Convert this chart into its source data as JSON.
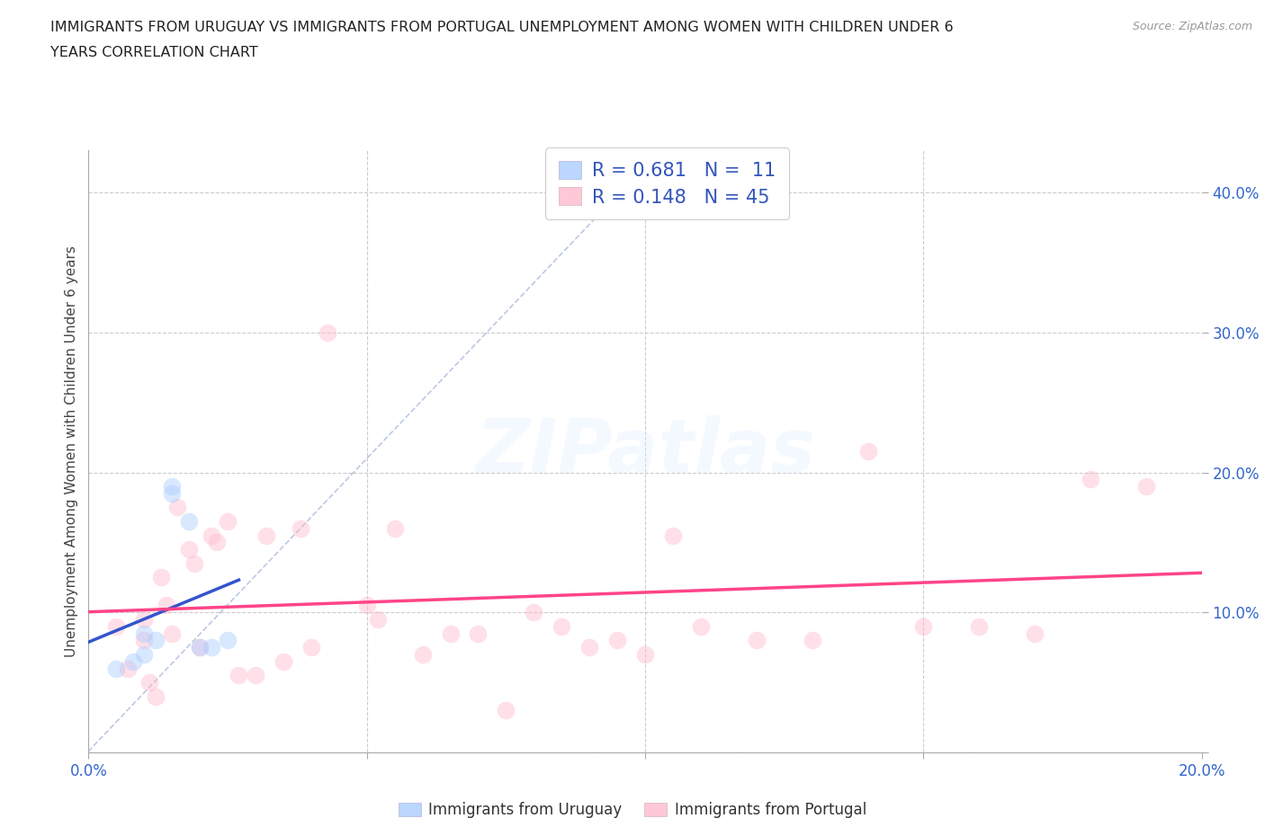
{
  "title_line1": "IMMIGRANTS FROM URUGUAY VS IMMIGRANTS FROM PORTUGAL UNEMPLOYMENT AMONG WOMEN WITH CHILDREN UNDER 6",
  "title_line2": "YEARS CORRELATION CHART",
  "source_text": "Source: ZipAtlas.com",
  "ylabel": "Unemployment Among Women with Children Under 6 years",
  "xlim": [
    0.0,
    0.2
  ],
  "ylim": [
    0.0,
    0.43
  ],
  "xticks": [
    0.0,
    0.05,
    0.1,
    0.15,
    0.2
  ],
  "yticks": [
    0.0,
    0.1,
    0.2,
    0.3,
    0.4
  ],
  "xticklabels": [
    "0.0%",
    "",
    "",
    "",
    "20.0%"
  ],
  "yticklabels": [
    "",
    "10.0%",
    "20.0%",
    "30.0%",
    "40.0%"
  ],
  "uruguay_R": 0.681,
  "uruguay_N": 11,
  "portugal_R": 0.148,
  "portugal_N": 45,
  "uruguay_color": "#aaccff",
  "portugal_color": "#ffbbcc",
  "uruguay_line_color": "#3355cc",
  "portugal_line_color": "#ff4488",
  "diag_line_color": "#aabbdd",
  "uruguay_x": [
    0.005,
    0.008,
    0.01,
    0.01,
    0.012,
    0.015,
    0.015,
    0.018,
    0.02,
    0.022,
    0.025
  ],
  "uruguay_y": [
    0.06,
    0.065,
    0.07,
    0.085,
    0.08,
    0.19,
    0.185,
    0.165,
    0.075,
    0.075,
    0.08
  ],
  "portugal_x": [
    0.005,
    0.007,
    0.01,
    0.01,
    0.011,
    0.012,
    0.013,
    0.014,
    0.015,
    0.016,
    0.018,
    0.019,
    0.02,
    0.022,
    0.023,
    0.025,
    0.027,
    0.03,
    0.032,
    0.035,
    0.038,
    0.04,
    0.043,
    0.05,
    0.052,
    0.055,
    0.06,
    0.065,
    0.07,
    0.075,
    0.08,
    0.085,
    0.09,
    0.095,
    0.1,
    0.105,
    0.11,
    0.12,
    0.13,
    0.14,
    0.15,
    0.16,
    0.17,
    0.18,
    0.19
  ],
  "portugal_y": [
    0.09,
    0.06,
    0.095,
    0.08,
    0.05,
    0.04,
    0.125,
    0.105,
    0.085,
    0.175,
    0.145,
    0.135,
    0.075,
    0.155,
    0.15,
    0.165,
    0.055,
    0.055,
    0.155,
    0.065,
    0.16,
    0.075,
    0.3,
    0.105,
    0.095,
    0.16,
    0.07,
    0.085,
    0.085,
    0.03,
    0.1,
    0.09,
    0.075,
    0.08,
    0.07,
    0.155,
    0.09,
    0.08,
    0.08,
    0.215,
    0.09,
    0.09,
    0.085,
    0.195,
    0.19
  ],
  "marker_size": 200,
  "marker_alpha": 0.45,
  "background_color": "#ffffff",
  "grid_color": "#cccccc",
  "legend_label_uruguay": "Immigrants from Uruguay",
  "legend_label_portugal": "Immigrants from Portugal"
}
